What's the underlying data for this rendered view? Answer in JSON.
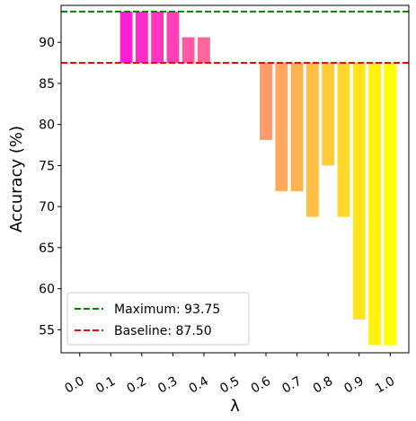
{
  "chart_data": {
    "type": "bar",
    "xlabel": "λ",
    "ylabel": "Accuracy (%)",
    "ylim": [
      52.2,
      94.5
    ],
    "xlim": [
      -0.06,
      1.06
    ],
    "yticks": [
      55,
      60,
      65,
      70,
      75,
      80,
      85,
      90
    ],
    "xticks": [
      0.0,
      0.1,
      0.2,
      0.3,
      0.4,
      0.5,
      0.6,
      0.7,
      0.8,
      0.9,
      1.0
    ],
    "xtick_labels": [
      "0.0",
      "0.1",
      "0.2",
      "0.3",
      "0.4",
      "0.5",
      "0.6",
      "0.7",
      "0.8",
      "0.9",
      "1.0"
    ],
    "xtick_rotation": 30,
    "baseline": 87.5,
    "bar_width": 0.04,
    "bars": [
      {
        "x": 0.15,
        "value": 93.75,
        "color": "#ff1ed4"
      },
      {
        "x": 0.2,
        "value": 93.75,
        "color": "#ff2bc9"
      },
      {
        "x": 0.25,
        "value": 93.75,
        "color": "#ff35c0"
      },
      {
        "x": 0.3,
        "value": 93.75,
        "color": "#ff40b8"
      },
      {
        "x": 0.35,
        "value": 90.62,
        "color": "#ff59a6"
      },
      {
        "x": 0.4,
        "value": 90.62,
        "color": "#ff669c"
      },
      {
        "x": 0.6,
        "value": 78.12,
        "color": "#ff9a6c"
      },
      {
        "x": 0.65,
        "value": 71.88,
        "color": "#ffa85e"
      },
      {
        "x": 0.7,
        "value": 71.88,
        "color": "#ffb352"
      },
      {
        "x": 0.75,
        "value": 68.75,
        "color": "#ffbf44"
      },
      {
        "x": 0.8,
        "value": 75.0,
        "color": "#ffcc38"
      },
      {
        "x": 0.85,
        "value": 68.75,
        "color": "#ffd82a"
      },
      {
        "x": 0.9,
        "value": 56.25,
        "color": "#ffe61a"
      },
      {
        "x": 0.95,
        "value": 53.12,
        "color": "#fff20d"
      },
      {
        "x": 1.0,
        "value": 53.12,
        "color": "#ffff00"
      }
    ],
    "reference_lines": [
      {
        "name": "Maximum: 93.75",
        "value": 93.75,
        "color": "#008000",
        "style": "dashed"
      },
      {
        "name": "Baseline: 87.50",
        "value": 87.5,
        "color": "#ff0000",
        "style": "dashed"
      }
    ],
    "legend": {
      "position": "lower-left",
      "entries": [
        "Maximum: 93.75",
        "Baseline: 87.50"
      ]
    },
    "grid": false
  }
}
